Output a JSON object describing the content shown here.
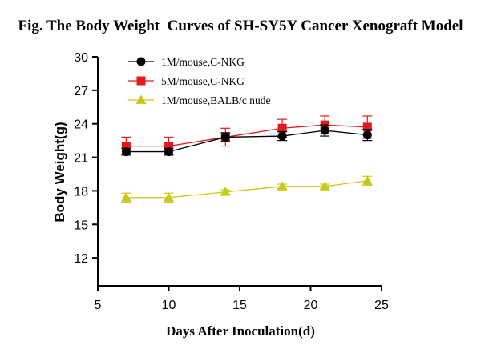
{
  "chart_data": {
    "type": "line",
    "title": "Fig. The Body Weight  Curves of SH-SY5Y Cancer Xenograft Model",
    "xlabel": "Days After Inoculation(d)",
    "ylabel": "Body Weight(g)",
    "xlim": [
      5,
      25
    ],
    "ylim": [
      9.5,
      30
    ],
    "xticks": [
      5,
      10,
      15,
      20,
      25
    ],
    "yticks": [
      12,
      15,
      18,
      21,
      24,
      27,
      30
    ],
    "x": [
      7,
      10,
      14,
      18,
      21,
      24
    ],
    "grid": false,
    "legend_position": "top-left",
    "series": [
      {
        "name": "1M/mouse,C-NKG",
        "color": "#000000",
        "marker": "circle",
        "values": [
          21.5,
          21.5,
          22.8,
          22.9,
          23.4,
          23.0
        ],
        "errors": [
          0.3,
          0.3,
          0.4,
          0.4,
          0.5,
          0.5
        ]
      },
      {
        "name": "5M/mouse,C-NKG",
        "color": "#e31a1c",
        "marker": "square",
        "values": [
          22.0,
          22.0,
          22.8,
          23.6,
          23.9,
          23.7
        ],
        "errors": [
          0.8,
          0.8,
          0.8,
          0.8,
          0.8,
          1.0
        ]
      },
      {
        "name": "1M/mouse,BALB/c nude",
        "color": "#c8c81a",
        "marker": "triangle",
        "values": [
          17.4,
          17.4,
          17.9,
          18.4,
          18.4,
          18.9
        ],
        "errors": [
          0.4,
          0.4,
          0.2,
          0.2,
          0.2,
          0.4
        ]
      }
    ]
  }
}
